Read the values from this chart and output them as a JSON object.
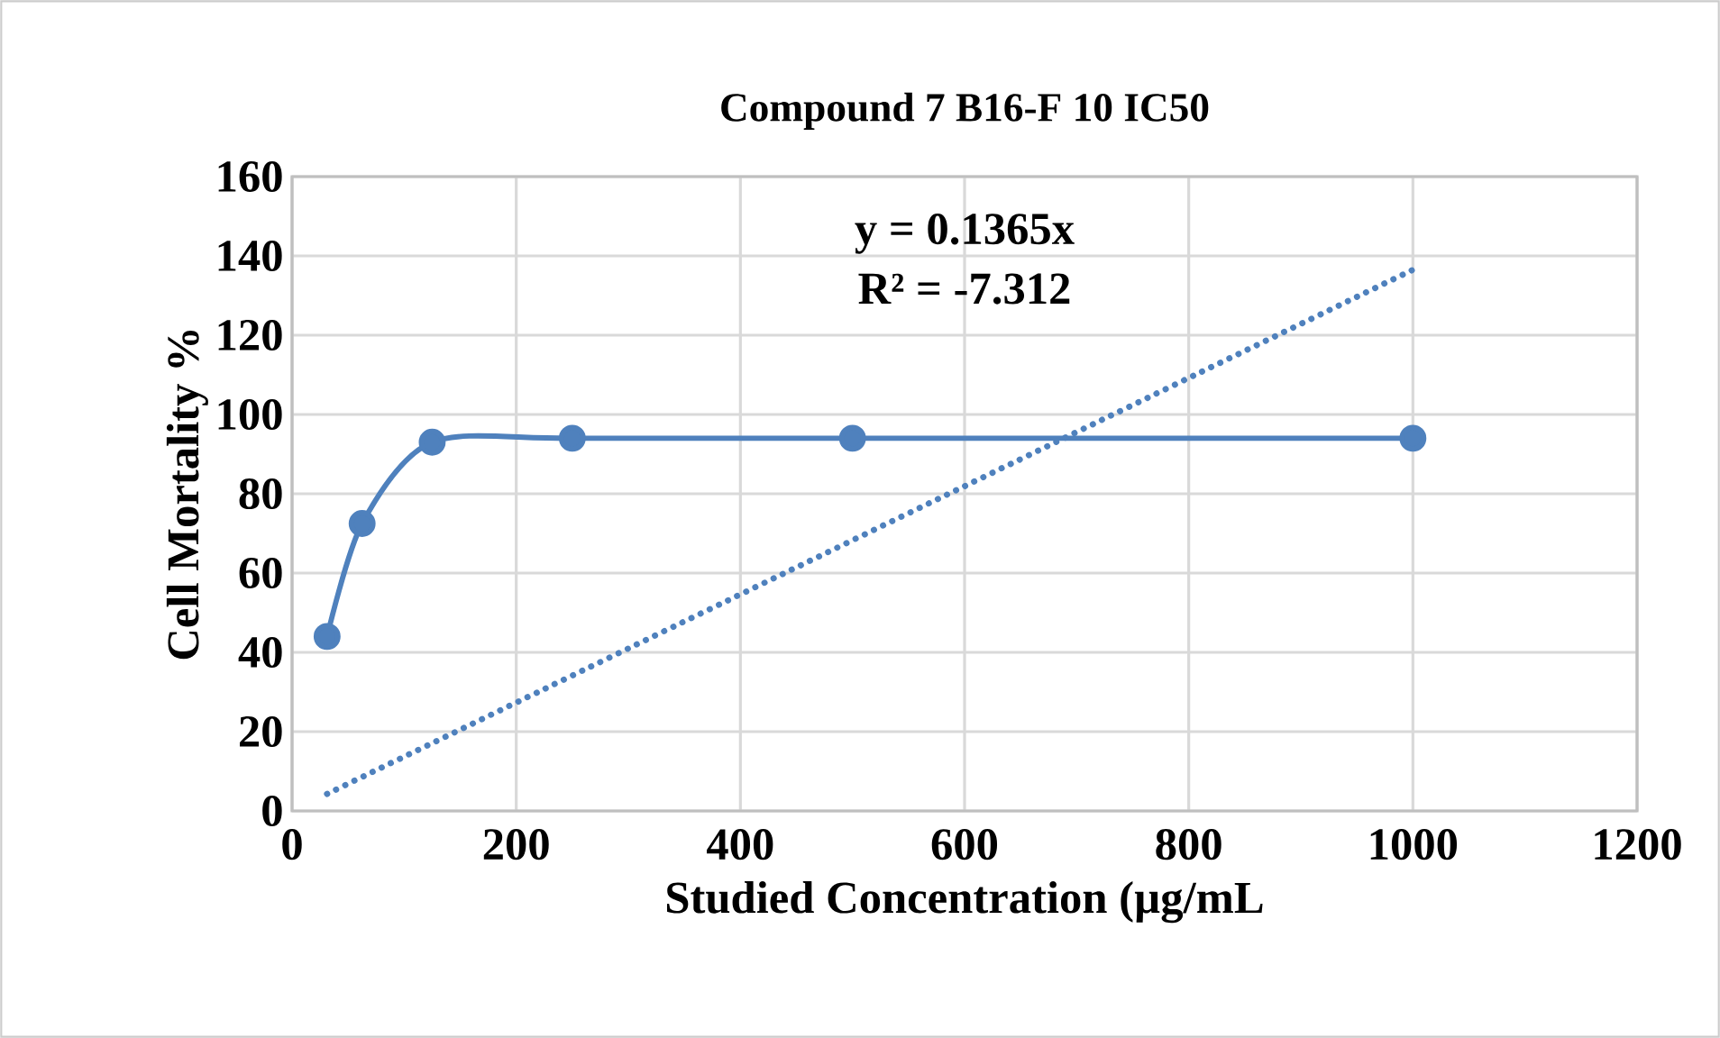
{
  "chart_data": {
    "type": "line",
    "title": "Compound 7 B16-F 10  IC50",
    "xlabel": "Studied Concentration (µg/mL",
    "ylabel": "Cell Mortality %",
    "xlim": [
      0,
      1200
    ],
    "xticks": [
      0,
      200,
      400,
      600,
      800,
      1000,
      1200
    ],
    "ylim": [
      0,
      160
    ],
    "yticks": [
      0,
      20,
      40,
      60,
      80,
      100,
      120,
      140,
      160
    ],
    "grid": true,
    "series": [
      {
        "color": "#4f81bd",
        "x": [
          31.25,
          62.5,
          125,
          250,
          500,
          1000
        ],
        "values": [
          44,
          72.5,
          93,
          94,
          94,
          94
        ],
        "marker": "circle",
        "line_style": "solid"
      },
      {
        "type": "line",
        "color": "#4f81bd",
        "x": [
          31.25,
          1000
        ],
        "values": [
          4.3,
          136.5
        ],
        "marker": "none",
        "line_style": "dotted"
      }
    ],
    "annotations": [
      "y = 0.1365x",
      "R² = -7.312"
    ]
  }
}
